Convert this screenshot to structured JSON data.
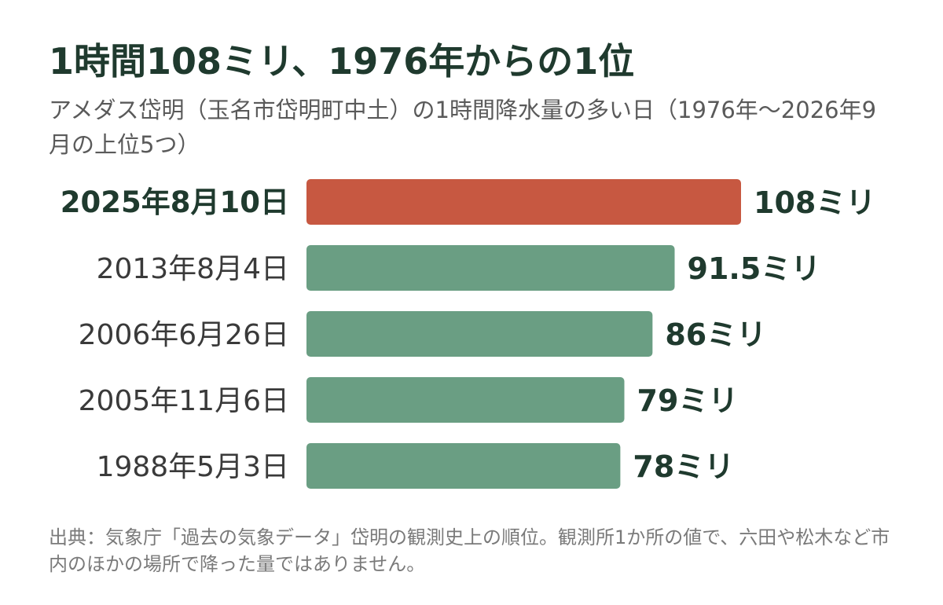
{
  "title": "1時間108ミリ、1976年からの1位",
  "subtitle": "アメダス岱明（玉名市岱明町中土）の1時間降水量の多い日（1976年〜2026年9月の上位5つ）",
  "source": "出典：気象庁「過去の気象データ」岱明の観測史上の順位。観測所1か所の値で、六田や松木など市内のほかの場所で降った量ではありません。",
  "colors": {
    "highlight": "#c75841",
    "normal": "#6a9e83",
    "label_text": "#1f3a2e",
    "category_text": "#3a3a3a"
  },
  "chart_data": {
    "type": "bar",
    "orientation": "horizontal",
    "categories": [
      "2025年8月10日",
      "2013年8月4日",
      "2006年6月26日",
      "2005年11月6日",
      "1988年5月3日"
    ],
    "values": [
      108,
      91.5,
      86,
      79,
      78
    ],
    "value_labels": [
      "108ミリ",
      "91.5ミリ",
      "86ミリ",
      "79ミリ",
      "78ミリ"
    ],
    "highlight_index": 0,
    "xlim": [
      0,
      108
    ],
    "grid": false
  }
}
